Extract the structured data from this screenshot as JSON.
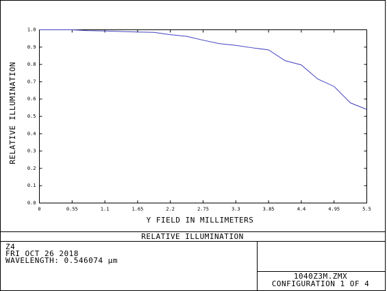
{
  "chart_data": {
    "type": "line",
    "xlabel": "Y FIELD IN MILLIMETERS",
    "ylabel": "RELATIVE ILLUMINATION",
    "x": [
      0,
      0.275,
      0.55,
      0.825,
      1.1,
      1.375,
      1.65,
      1.925,
      2.2,
      2.475,
      2.75,
      3.025,
      3.3,
      3.575,
      3.85,
      4.125,
      4.4,
      4.675,
      4.95,
      5.225,
      5.5
    ],
    "series": [
      {
        "color": "#4040c0",
        "values": [
          1.0,
          1.0,
          1.0,
          0.995,
          0.993,
          0.99,
          0.987,
          0.985,
          0.972,
          0.962,
          0.94,
          0.92,
          0.91,
          0.896,
          0.884,
          0.822,
          0.797,
          0.716,
          0.673,
          0.578,
          0.54
        ]
      }
    ],
    "xlim": [
      0,
      5.5
    ],
    "xticks": [
      0,
      0.55,
      1.1,
      1.65,
      2.2,
      2.75,
      3.3,
      3.85,
      4.4,
      4.95,
      5.5
    ],
    "ylim": [
      0,
      1
    ],
    "yticks": [
      {
        "value": 0,
        "label": "0.0"
      },
      {
        "value": 0.1,
        "label": "0.1"
      },
      {
        "value": 0.2,
        "label": "0.2"
      },
      {
        "value": 0.3,
        "label": "0.3"
      },
      {
        "value": 0.4,
        "label": "0.4"
      },
      {
        "value": 0.5,
        "label": "0.5"
      },
      {
        "value": 0.6,
        "label": "0.6"
      },
      {
        "value": 0.7,
        "label": "0.7"
      },
      {
        "value": 0.8,
        "label": "0.8"
      },
      {
        "value": 0.9,
        "label": "0.9"
      },
      {
        "value": 1,
        "label": "1.0"
      }
    ],
    "grid": false
  },
  "footer": {
    "title": "RELATIVE ILLUMINATION",
    "lines": [
      "Z4",
      "FRI OCT 26 2018",
      "WAVELENGTH: 0.546074 µm"
    ],
    "file": "1040Z3M.ZMX",
    "configuration": "CONFIGURATION 1 OF 4"
  }
}
